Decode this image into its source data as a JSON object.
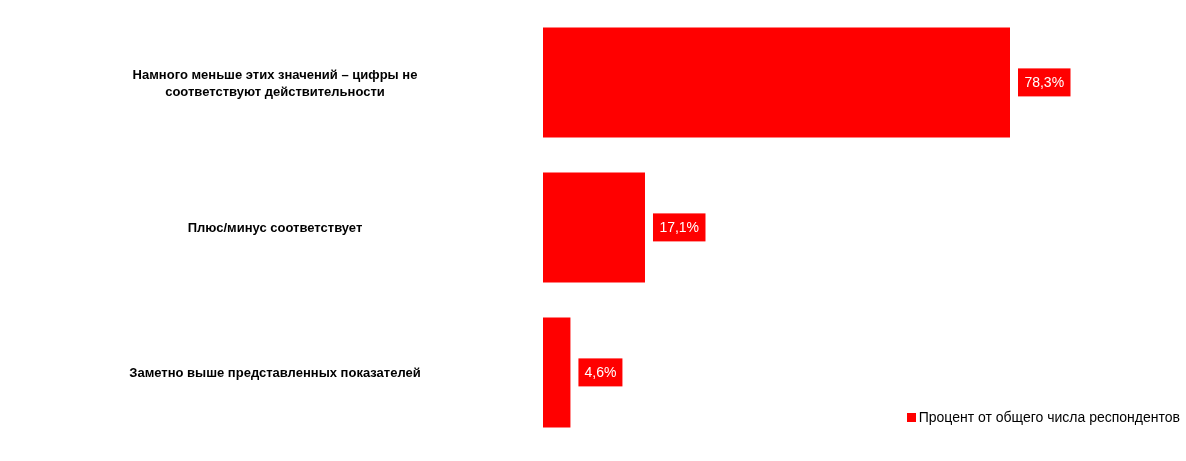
{
  "chart_data": {
    "type": "bar",
    "orientation": "horizontal",
    "categories": [
      "Намного меньше этих значений – цифры не соответствуют действительности",
      "Плюс/минус соответствует",
      "Заметно выше представленных показателей"
    ],
    "series": [
      {
        "name": "Процент от общего числа респондентов",
        "color": "#ff0000",
        "values": [
          78.3,
          17.1,
          4.6
        ],
        "value_labels": [
          "78,3%",
          "17,1%",
          "4,6%"
        ]
      }
    ],
    "legend": "bottom right"
  }
}
